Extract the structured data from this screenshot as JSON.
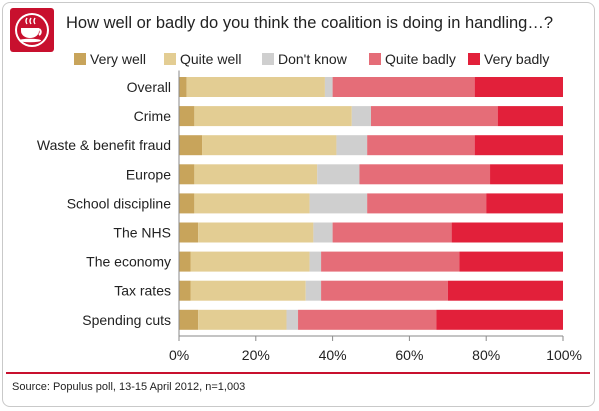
{
  "header": {
    "title": "How well or badly do you think the coalition is doing in handling…?"
  },
  "source": "Source: Populus poll, 13-15 April 2012, n=1,003",
  "colors": {
    "Very well": "#c8a45b",
    "Quite well": "#e3cd93",
    "Don't know": "#cfcfcf",
    "Quite badly": "#e56d78",
    "Very badly": "#e2203a",
    "accent": "#c8102e"
  },
  "chart_data": {
    "type": "bar",
    "orientation": "horizontal",
    "stacked": "percent",
    "title": "How well or badly do you think the coalition is doing in handling…?",
    "legend_position": "top",
    "categories": [
      "Overall",
      "Crime",
      "Waste & benefit fraud",
      "Europe",
      "School discipline",
      "The NHS",
      "The economy",
      "Tax rates",
      "Spending cuts"
    ],
    "series": [
      {
        "name": "Very well",
        "values": [
          2,
          4,
          6,
          4,
          4,
          5,
          3,
          3,
          5
        ]
      },
      {
        "name": "Quite well",
        "values": [
          36,
          41,
          35,
          32,
          30,
          30,
          31,
          30,
          23
        ]
      },
      {
        "name": "Don't know",
        "values": [
          2,
          5,
          8,
          11,
          15,
          5,
          3,
          4,
          3
        ]
      },
      {
        "name": "Quite badly",
        "values": [
          37,
          33,
          28,
          34,
          31,
          31,
          36,
          33,
          36
        ]
      },
      {
        "name": "Very badly",
        "values": [
          23,
          17,
          23,
          19,
          20,
          29,
          27,
          30,
          33
        ]
      }
    ],
    "xlim": [
      0,
      100
    ],
    "xticks": [
      "0%",
      "20%",
      "40%",
      "60%",
      "80%",
      "100%"
    ],
    "grid": false
  }
}
